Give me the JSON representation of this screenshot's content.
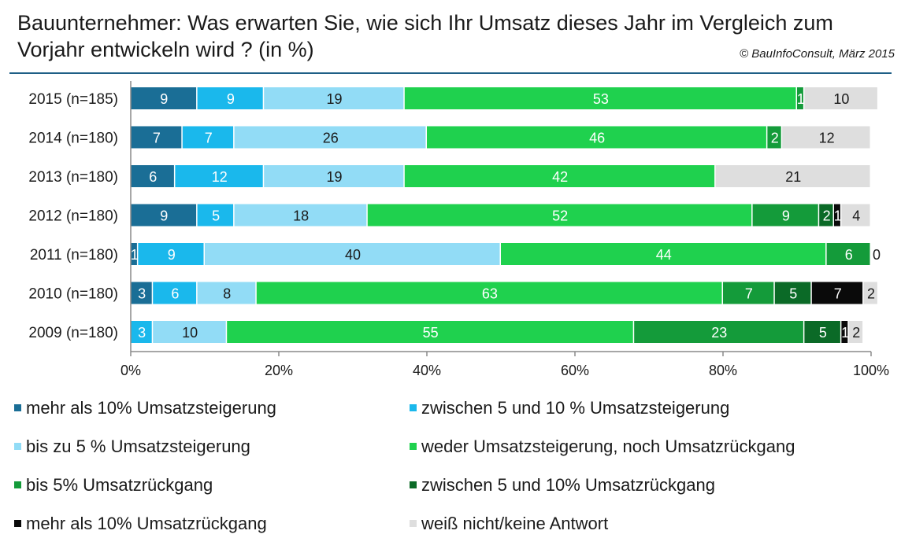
{
  "title": "Bauunternehmer: Was erwarten Sie, wie  sich Ihr Umsatz dieses Jahr im Vergleich zum Vorjahr entwickeln wird ? (in %)",
  "credit": "© BauInfoConsult, März  2015",
  "chart_data": {
    "type": "bar",
    "orientation": "horizontal",
    "stacked": true,
    "title": "Bauunternehmer: Was erwarten Sie, wie  sich Ihr Umsatz dieses Jahr im Vergleich zum Vorjahr entwickeln wird ? (in %)",
    "categories": [
      "2015 (n=185)",
      "2014 (n=180)",
      "2013 (n=180)",
      "2012 (n=180)",
      "2011 (n=180)",
      "2010 (n=180)",
      "2009 (n=180)"
    ],
    "xlim": [
      0,
      100
    ],
    "x_ticks": [
      "0%",
      "20%",
      "40%",
      "60%",
      "80%",
      "100%"
    ],
    "legend_position": "bottom",
    "series": [
      {
        "name": "mehr als 10% Umsatzsteigerung",
        "color": "#1a6e96",
        "label_color": "#ffffff",
        "values": [
          9,
          7,
          6,
          9,
          1,
          3,
          0
        ]
      },
      {
        "name": "zwischen 5 und 10 % Umsatzsteigerung",
        "color": "#1ab8ec",
        "label_color": "#ffffff",
        "values": [
          9,
          7,
          12,
          5,
          9,
          6,
          3
        ]
      },
      {
        "name": "bis zu 5 % Umsatzsteigerung",
        "color": "#92dcf6",
        "label_color": "#1a1a1a",
        "values": [
          19,
          26,
          19,
          18,
          40,
          8,
          10
        ]
      },
      {
        "name": "weder Umsatzsteigerung, noch Umsatzrückgang",
        "color": "#1fd14e",
        "label_color": "#ffffff",
        "values": [
          53,
          46,
          42,
          52,
          44,
          63,
          55
        ]
      },
      {
        "name": "bis 5% Umsatzrückgang",
        "color": "#149b3a",
        "label_color": "#ffffff",
        "values": [
          1,
          2,
          0,
          9,
          6,
          7,
          23
        ]
      },
      {
        "name": "zwischen 5 und 10% Umsatzrückgang",
        "color": "#0b6a27",
        "label_color": "#ffffff",
        "values": [
          0,
          0,
          0,
          2,
          0,
          5,
          5
        ]
      },
      {
        "name": "mehr als 10% Umsatzrückgang",
        "color": "#0a0a0a",
        "label_color": "#ffffff",
        "values": [
          0,
          0,
          0,
          1,
          0,
          7,
          1
        ]
      },
      {
        "name": "weiß nicht/keine Antwort",
        "color": "#dedede",
        "label_color": "#1a1a1a",
        "values": [
          10,
          12,
          21,
          4,
          0,
          2,
          2
        ]
      }
    ],
    "outside_labels": [
      {
        "category_index": 4,
        "text": "0"
      }
    ]
  }
}
